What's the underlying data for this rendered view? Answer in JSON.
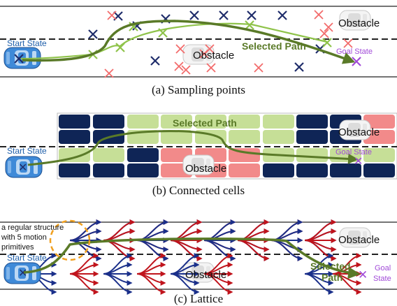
{
  "panel_a": {
    "caption": "(a) Sampling points",
    "start_label": "Start State",
    "obstacle_label_1": "Obstacle",
    "obstacle_label_2": "Obstacle",
    "path_label": "Selected Path",
    "goal_label": "Goal State"
  },
  "panel_b": {
    "caption": "(b) Connected cells",
    "start_label": "Start State",
    "obstacle_label_1": "Obstacle",
    "obstacle_label_2": "Obstacle",
    "path_label": "Selected Path",
    "goal_label": "Goal State"
  },
  "panel_c": {
    "caption": "(c) Lattice",
    "start_label": "Start State",
    "obstacle_label_1": "Obstacle",
    "obstacle_label_2": "Obstacle",
    "path_label_line1": "Selected",
    "path_label_line2": "Path",
    "goal_label_line1": "Goal",
    "goal_label_line2": "State",
    "annotation_line1": "a regular structure",
    "annotation_line2": "with 5 motion",
    "annotation_line3": "primitives"
  },
  "colors": {
    "lane_line": "#222222",
    "path_green": "#5a7a28",
    "sample_green": "#8fc34a",
    "feasible_blue": "#1f2d6b",
    "infeasible_red": "#f26b6b",
    "cell_green": "#c6df97",
    "cell_navy": "#0f2556",
    "cell_red": "#f28a8a",
    "goal_purple": "#a14ad8",
    "annotation_orange": "#f0a020",
    "car_blue": "#3f8ad8"
  }
}
